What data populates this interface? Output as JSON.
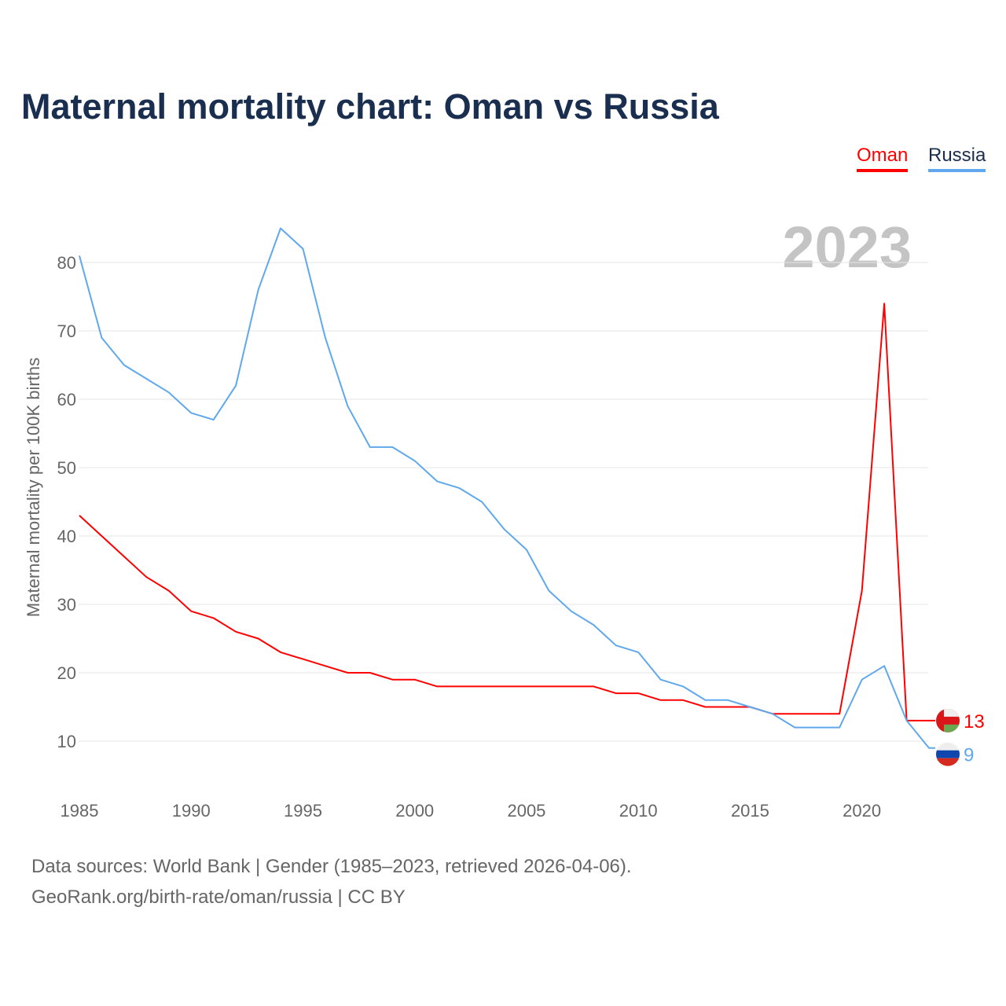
{
  "title": "Maternal mortality chart: Oman vs Russia",
  "year_watermark": "2023",
  "footer": {
    "line1": "Data sources: World Bank | Gender (1985–2023, retrieved 2026-04-06).",
    "line2": "GeoRank.org/birth-rate/oman/russia | CC BY"
  },
  "chart_data": {
    "type": "line",
    "title": "Maternal mortality chart: Oman vs Russia",
    "xlabel": "",
    "ylabel": "Maternal mortality per 100K births",
    "xlim": [
      1985,
      2023
    ],
    "ylim": [
      3,
      88
    ],
    "x_ticks": [
      1985,
      1990,
      1995,
      2000,
      2005,
      2010,
      2015,
      2020
    ],
    "y_ticks": [
      10,
      20,
      30,
      40,
      50,
      60,
      70,
      80
    ],
    "grid": true,
    "legend_placement": "top-right",
    "x": [
      1985,
      1986,
      1987,
      1988,
      1989,
      1990,
      1991,
      1992,
      1993,
      1994,
      1995,
      1996,
      1997,
      1998,
      1999,
      2000,
      2001,
      2002,
      2003,
      2004,
      2005,
      2006,
      2007,
      2008,
      2009,
      2010,
      2011,
      2012,
      2013,
      2014,
      2015,
      2016,
      2017,
      2018,
      2019,
      2020,
      2021,
      2022,
      2023
    ],
    "series": [
      {
        "name": "Oman",
        "color": "#ff0000",
        "end_label": "13",
        "values": [
          43,
          40,
          37,
          34,
          32,
          29,
          28,
          26,
          25,
          23,
          22,
          21,
          20,
          20,
          19,
          19,
          18,
          18,
          18,
          18,
          18,
          18,
          18,
          18,
          17,
          17,
          16,
          16,
          15,
          15,
          15,
          14,
          14,
          14,
          14,
          32,
          74,
          13,
          13
        ]
      },
      {
        "name": "Russia",
        "color": "#5fa8ec",
        "end_label": "9",
        "values": [
          81,
          69,
          65,
          63,
          61,
          58,
          57,
          62,
          76,
          85,
          82,
          69,
          59,
          53,
          53,
          51,
          48,
          47,
          45,
          41,
          38,
          32,
          29,
          27,
          24,
          23,
          19,
          18,
          16,
          16,
          15,
          14,
          12,
          12,
          12,
          19,
          21,
          13,
          9
        ]
      }
    ]
  }
}
